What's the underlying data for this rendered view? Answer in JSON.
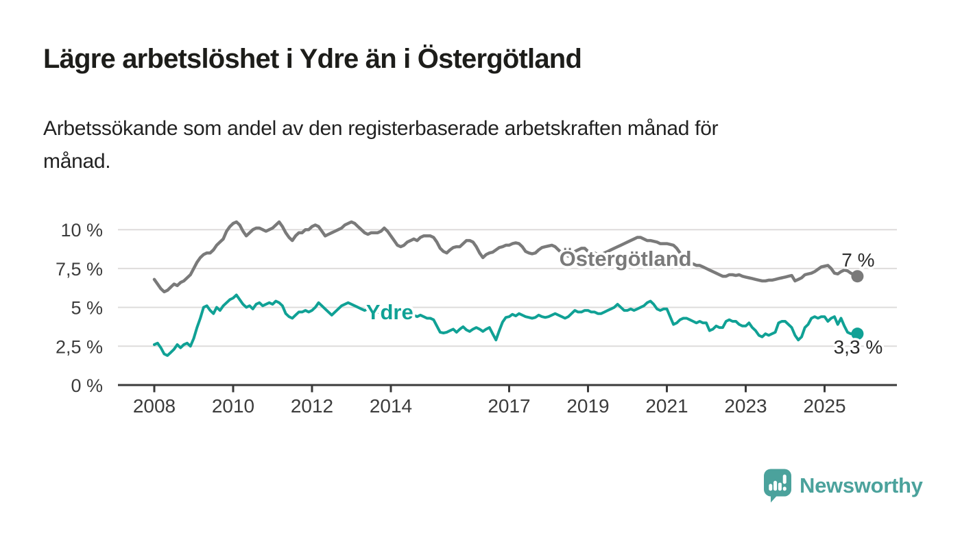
{
  "header": {
    "title": "Lägre arbetslöshet i Ydre än i Östergötland",
    "subtitle_lines": [
      "Arbetssökande som andel av den registerbaserade arbetskraften månad för",
      "månad."
    ]
  },
  "chart_data": {
    "type": "line",
    "unit": "%",
    "frequency": "monthly",
    "start_year": 2008,
    "ylim": [
      0,
      11
    ],
    "grid": true,
    "colors": {
      "ostergotland": "#7a7a7a",
      "ydre": "#10A195",
      "axis": "#3a3a3a",
      "gridline": "#dedcdb",
      "tick_text": "#3c3c3c",
      "end_label_text": "#2b2b2b"
    },
    "y_ticks": [
      {
        "label": "10 %",
        "value": 10
      },
      {
        "label": "7,5 %",
        "value": 7.5
      },
      {
        "label": "5 %",
        "value": 5
      },
      {
        "label": "2,5 %",
        "value": 2.5
      },
      {
        "label": "0 %",
        "value": 0
      }
    ],
    "x_ticks": [
      {
        "label": "2008",
        "year": 2008
      },
      {
        "label": "2010",
        "year": 2010
      },
      {
        "label": "2012",
        "year": 2012
      },
      {
        "label": "2014",
        "year": 2014
      },
      {
        "label": "2017",
        "year": 2017
      },
      {
        "label": "2019",
        "year": 2019
      },
      {
        "label": "2021",
        "year": 2021
      },
      {
        "label": "2023",
        "year": 2023
      },
      {
        "label": "2025",
        "year": 2025
      }
    ],
    "series": [
      {
        "name": "Östergötland",
        "slug": "ostergotland",
        "color": "#7a7a7a",
        "line_width": 4.5,
        "label": "Östergötland",
        "label_pos": {
          "year": 2019.95,
          "value": 8.16
        },
        "end_label": "7 %",
        "end_label_side": "above",
        "values": [
          6.8,
          6.5,
          6.2,
          6.0,
          6.1,
          6.3,
          6.5,
          6.4,
          6.6,
          6.7,
          6.9,
          7.1,
          7.5,
          7.9,
          8.2,
          8.4,
          8.5,
          8.5,
          8.7,
          9.0,
          9.2,
          9.4,
          9.9,
          10.2,
          10.4,
          10.5,
          10.3,
          9.9,
          9.6,
          9.8,
          10.0,
          10.1,
          10.1,
          10.0,
          9.9,
          10.0,
          10.1,
          10.3,
          10.5,
          10.2,
          9.8,
          9.5,
          9.3,
          9.6,
          9.8,
          9.8,
          10.0,
          10.0,
          10.2,
          10.3,
          10.2,
          9.9,
          9.6,
          9.7,
          9.8,
          9.9,
          10.0,
          10.1,
          10.3,
          10.4,
          10.5,
          10.4,
          10.2,
          10.0,
          9.8,
          9.7,
          9.8,
          9.8,
          9.8,
          9.9,
          10.1,
          9.9,
          9.6,
          9.3,
          9.0,
          8.9,
          9.0,
          9.2,
          9.3,
          9.4,
          9.3,
          9.5,
          9.6,
          9.6,
          9.6,
          9.5,
          9.2,
          8.8,
          8.6,
          8.5,
          8.7,
          8.85,
          8.9,
          8.9,
          9.1,
          9.3,
          9.3,
          9.2,
          8.9,
          8.5,
          8.2,
          8.4,
          8.5,
          8.55,
          8.7,
          8.85,
          8.9,
          9.0,
          9.0,
          9.1,
          9.15,
          9.1,
          8.9,
          8.6,
          8.5,
          8.45,
          8.5,
          8.7,
          8.85,
          8.9,
          8.95,
          9.0,
          8.9,
          8.7,
          8.5,
          8.4,
          8.3,
          8.4,
          8.6,
          8.7,
          8.8,
          8.8,
          8.6,
          8.6,
          8.5,
          8.4,
          8.4,
          8.5,
          8.6,
          8.7,
          8.8,
          8.9,
          9.0,
          9.1,
          9.2,
          9.3,
          9.4,
          9.5,
          9.5,
          9.4,
          9.3,
          9.3,
          9.25,
          9.2,
          9.1,
          9.1,
          9.1,
          9.05,
          9.0,
          8.8,
          8.5,
          8.2,
          7.9,
          7.8,
          7.8,
          7.7,
          7.7,
          7.6,
          7.5,
          7.4,
          7.3,
          7.2,
          7.1,
          7.0,
          7.0,
          7.1,
          7.1,
          7.05,
          7.1,
          7.0,
          6.95,
          6.9,
          6.85,
          6.8,
          6.75,
          6.7,
          6.7,
          6.75,
          6.75,
          6.8,
          6.85,
          6.9,
          6.95,
          7.0,
          7.05,
          6.7,
          6.8,
          6.9,
          7.1,
          7.15,
          7.2,
          7.3,
          7.45,
          7.6,
          7.65,
          7.7,
          7.5,
          7.2,
          7.15,
          7.3,
          7.4,
          7.35,
          7.2,
          7.1,
          7.0
        ]
      },
      {
        "name": "Ydre",
        "slug": "ydre",
        "color": "#10A195",
        "line_width": 4,
        "label": "Ydre",
        "label_pos": {
          "year": 2013.97,
          "value": 4.72
        },
        "end_label": "3,3 %",
        "end_label_side": "below",
        "values": [
          2.6,
          2.7,
          2.4,
          2.0,
          1.9,
          2.1,
          2.3,
          2.6,
          2.4,
          2.6,
          2.7,
          2.5,
          3.0,
          3.7,
          4.3,
          5.0,
          5.1,
          4.8,
          4.6,
          5.0,
          4.8,
          5.1,
          5.3,
          5.5,
          5.6,
          5.8,
          5.5,
          5.2,
          5.0,
          5.1,
          4.9,
          5.2,
          5.3,
          5.1,
          5.2,
          5.3,
          5.2,
          5.4,
          5.3,
          5.1,
          4.6,
          4.4,
          4.3,
          4.5,
          4.7,
          4.7,
          4.8,
          4.7,
          4.8,
          5.0,
          5.3,
          5.1,
          4.9,
          4.7,
          4.5,
          4.7,
          4.9,
          5.1,
          5.2,
          5.3,
          5.2,
          5.1,
          5.0,
          4.9,
          4.8,
          4.9,
          4.8,
          4.7,
          4.7,
          4.6,
          4.6,
          4.5,
          4.5,
          4.6,
          4.5,
          4.4,
          4.5,
          4.4,
          4.4,
          4.5,
          4.4,
          4.5,
          4.4,
          4.3,
          4.3,
          4.2,
          3.8,
          3.4,
          3.35,
          3.4,
          3.5,
          3.6,
          3.4,
          3.6,
          3.75,
          3.55,
          3.45,
          3.6,
          3.7,
          3.6,
          3.45,
          3.6,
          3.7,
          3.3,
          2.9,
          3.5,
          4.05,
          4.35,
          4.4,
          4.55,
          4.45,
          4.6,
          4.5,
          4.4,
          4.35,
          4.3,
          4.35,
          4.5,
          4.4,
          4.35,
          4.4,
          4.5,
          4.6,
          4.5,
          4.4,
          4.3,
          4.4,
          4.6,
          4.8,
          4.7,
          4.7,
          4.8,
          4.8,
          4.7,
          4.7,
          4.6,
          4.6,
          4.7,
          4.8,
          4.9,
          5.0,
          5.2,
          5.0,
          4.8,
          4.8,
          4.9,
          4.8,
          4.9,
          5.0,
          5.1,
          5.3,
          5.4,
          5.2,
          4.9,
          4.8,
          4.9,
          4.9,
          4.4,
          3.9,
          4.0,
          4.2,
          4.3,
          4.3,
          4.2,
          4.1,
          4.0,
          4.1,
          4.0,
          4.0,
          3.5,
          3.6,
          3.8,
          3.7,
          3.7,
          4.1,
          4.2,
          4.1,
          4.1,
          3.9,
          3.8,
          3.8,
          4.0,
          3.7,
          3.5,
          3.2,
          3.1,
          3.3,
          3.2,
          3.3,
          3.4,
          4.0,
          4.1,
          4.1,
          3.9,
          3.7,
          3.2,
          2.9,
          3.1,
          3.7,
          3.9,
          4.3,
          4.4,
          4.3,
          4.4,
          4.4,
          4.1,
          4.3,
          4.4,
          3.9,
          4.3,
          3.8,
          3.4,
          3.3,
          3.35,
          3.3
        ]
      }
    ]
  },
  "footer": {
    "brand": "Newsworthy",
    "brand_color": "#4BA29C"
  }
}
